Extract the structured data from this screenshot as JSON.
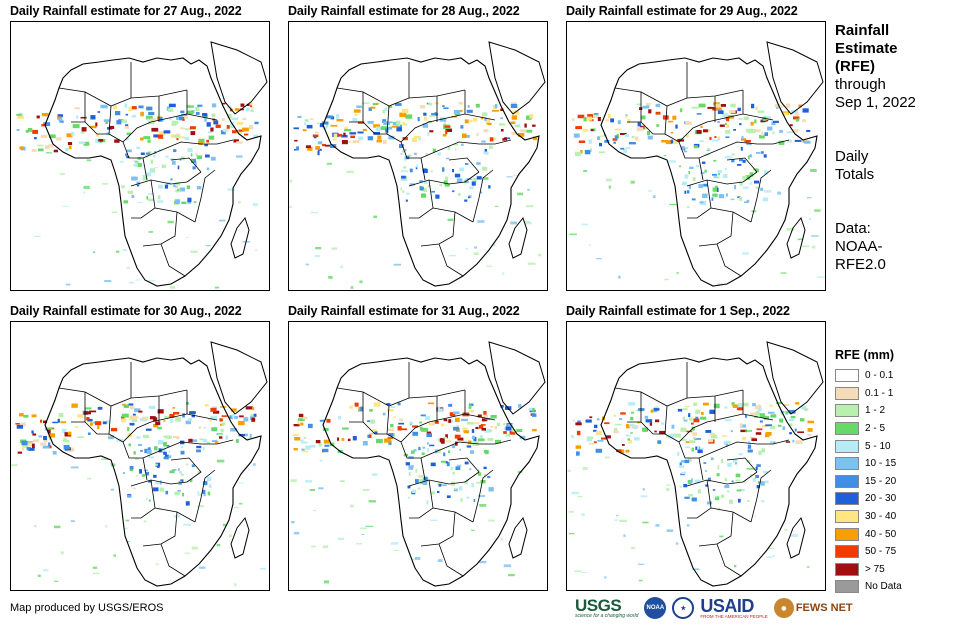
{
  "panels": [
    {
      "title": "Daily Rainfall estimate for 27 Aug., 2022"
    },
    {
      "title": "Daily Rainfall estimate for 28 Aug., 2022"
    },
    {
      "title": "Daily Rainfall estimate for 29 Aug., 2022"
    },
    {
      "title": "Daily Rainfall estimate for 30 Aug., 2022"
    },
    {
      "title": "Daily Rainfall estimate for 31 Aug., 2022"
    },
    {
      "title": "Daily Rainfall estimate for 1 Sep., 2022"
    }
  ],
  "sidebar": {
    "title_line1": "Rainfall",
    "title_line2": "Estimate",
    "title_line3": "(RFE)",
    "through_label": "through",
    "through_date": "Sep 1, 2022",
    "totals_line1": "Daily",
    "totals_line2": "Totals",
    "data_line1": "Data:",
    "data_line2": "NOAA-",
    "data_line3": "RFE2.0"
  },
  "legend": {
    "title": "RFE (mm)",
    "items": [
      {
        "label": "0 - 0.1",
        "color": "#ffffff"
      },
      {
        "label": "0.1 - 1",
        "color": "#f5dcb8"
      },
      {
        "label": "1 - 2",
        "color": "#b9f0b0"
      },
      {
        "label": "2 - 5",
        "color": "#66d966"
      },
      {
        "label": "5 - 10",
        "color": "#b6ecf5"
      },
      {
        "label": "10 - 15",
        "color": "#7ec0f0"
      },
      {
        "label": "15 - 20",
        "color": "#3f8fe8"
      },
      {
        "label": "20 - 30",
        "color": "#1f5fd9"
      },
      {
        "label": "30 - 40",
        "color": "#ffe680"
      },
      {
        "label": "40 - 50",
        "color": "#f5a000"
      },
      {
        "label": "50 - 75",
        "color": "#f03c00"
      },
      {
        "label": "> 75",
        "color": "#a01010"
      },
      {
        "label": "No Data",
        "color": "#9a9a9a"
      }
    ]
  },
  "credit": "Map produced by USGS/EROS",
  "logos": {
    "usgs": "USGS",
    "usgs_tagline": "science for a changing world",
    "noaa": "NOAA",
    "usaid": "USAID",
    "usaid_tagline": "FROM THE AMERICAN PEOPLE",
    "fews": "FEWS NET"
  }
}
